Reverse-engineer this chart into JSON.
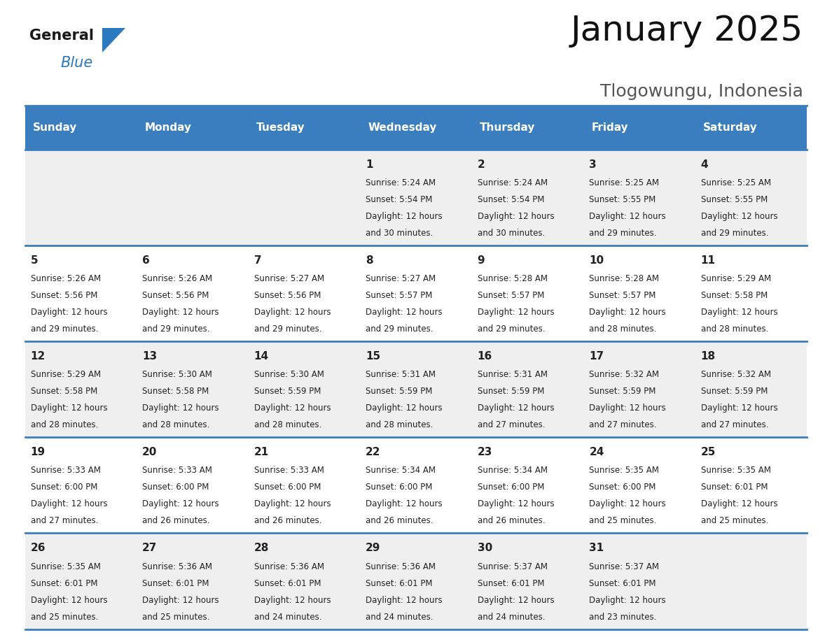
{
  "title": "January 2025",
  "subtitle": "Tlogowungu, Indonesia",
  "header_color": "#3a7ebf",
  "header_text_color": "#ffffff",
  "day_names": [
    "Sunday",
    "Monday",
    "Tuesday",
    "Wednesday",
    "Thursday",
    "Friday",
    "Saturday"
  ],
  "bg_color_odd": "#efefef",
  "bg_color_even": "#ffffff",
  "text_color": "#222222",
  "border_color": "#3a7ebf",
  "title_fontsize": 36,
  "subtitle_fontsize": 18,
  "header_fontsize": 11,
  "day_num_fontsize": 11,
  "cell_fontsize": 8.5,
  "logo_general_color": "#1a1a1a",
  "logo_blue_color": "#2b7abf",
  "logo_triangle_color": "#2b7abf",
  "days": [
    {
      "day": 1,
      "col": 3,
      "row": 0,
      "sunrise": "5:24 AM",
      "sunset": "5:54 PM",
      "daylight": "12 hours and 30 minutes."
    },
    {
      "day": 2,
      "col": 4,
      "row": 0,
      "sunrise": "5:24 AM",
      "sunset": "5:54 PM",
      "daylight": "12 hours and 30 minutes."
    },
    {
      "day": 3,
      "col": 5,
      "row": 0,
      "sunrise": "5:25 AM",
      "sunset": "5:55 PM",
      "daylight": "12 hours and 29 minutes."
    },
    {
      "day": 4,
      "col": 6,
      "row": 0,
      "sunrise": "5:25 AM",
      "sunset": "5:55 PM",
      "daylight": "12 hours and 29 minutes."
    },
    {
      "day": 5,
      "col": 0,
      "row": 1,
      "sunrise": "5:26 AM",
      "sunset": "5:56 PM",
      "daylight": "12 hours and 29 minutes."
    },
    {
      "day": 6,
      "col": 1,
      "row": 1,
      "sunrise": "5:26 AM",
      "sunset": "5:56 PM",
      "daylight": "12 hours and 29 minutes."
    },
    {
      "day": 7,
      "col": 2,
      "row": 1,
      "sunrise": "5:27 AM",
      "sunset": "5:56 PM",
      "daylight": "12 hours and 29 minutes."
    },
    {
      "day": 8,
      "col": 3,
      "row": 1,
      "sunrise": "5:27 AM",
      "sunset": "5:57 PM",
      "daylight": "12 hours and 29 minutes."
    },
    {
      "day": 9,
      "col": 4,
      "row": 1,
      "sunrise": "5:28 AM",
      "sunset": "5:57 PM",
      "daylight": "12 hours and 29 minutes."
    },
    {
      "day": 10,
      "col": 5,
      "row": 1,
      "sunrise": "5:28 AM",
      "sunset": "5:57 PM",
      "daylight": "12 hours and 28 minutes."
    },
    {
      "day": 11,
      "col": 6,
      "row": 1,
      "sunrise": "5:29 AM",
      "sunset": "5:58 PM",
      "daylight": "12 hours and 28 minutes."
    },
    {
      "day": 12,
      "col": 0,
      "row": 2,
      "sunrise": "5:29 AM",
      "sunset": "5:58 PM",
      "daylight": "12 hours and 28 minutes."
    },
    {
      "day": 13,
      "col": 1,
      "row": 2,
      "sunrise": "5:30 AM",
      "sunset": "5:58 PM",
      "daylight": "12 hours and 28 minutes."
    },
    {
      "day": 14,
      "col": 2,
      "row": 2,
      "sunrise": "5:30 AM",
      "sunset": "5:59 PM",
      "daylight": "12 hours and 28 minutes."
    },
    {
      "day": 15,
      "col": 3,
      "row": 2,
      "sunrise": "5:31 AM",
      "sunset": "5:59 PM",
      "daylight": "12 hours and 28 minutes."
    },
    {
      "day": 16,
      "col": 4,
      "row": 2,
      "sunrise": "5:31 AM",
      "sunset": "5:59 PM",
      "daylight": "12 hours and 27 minutes."
    },
    {
      "day": 17,
      "col": 5,
      "row": 2,
      "sunrise": "5:32 AM",
      "sunset": "5:59 PM",
      "daylight": "12 hours and 27 minutes."
    },
    {
      "day": 18,
      "col": 6,
      "row": 2,
      "sunrise": "5:32 AM",
      "sunset": "5:59 PM",
      "daylight": "12 hours and 27 minutes."
    },
    {
      "day": 19,
      "col": 0,
      "row": 3,
      "sunrise": "5:33 AM",
      "sunset": "6:00 PM",
      "daylight": "12 hours and 27 minutes."
    },
    {
      "day": 20,
      "col": 1,
      "row": 3,
      "sunrise": "5:33 AM",
      "sunset": "6:00 PM",
      "daylight": "12 hours and 26 minutes."
    },
    {
      "day": 21,
      "col": 2,
      "row": 3,
      "sunrise": "5:33 AM",
      "sunset": "6:00 PM",
      "daylight": "12 hours and 26 minutes."
    },
    {
      "day": 22,
      "col": 3,
      "row": 3,
      "sunrise": "5:34 AM",
      "sunset": "6:00 PM",
      "daylight": "12 hours and 26 minutes."
    },
    {
      "day": 23,
      "col": 4,
      "row": 3,
      "sunrise": "5:34 AM",
      "sunset": "6:00 PM",
      "daylight": "12 hours and 26 minutes."
    },
    {
      "day": 24,
      "col": 5,
      "row": 3,
      "sunrise": "5:35 AM",
      "sunset": "6:00 PM",
      "daylight": "12 hours and 25 minutes."
    },
    {
      "day": 25,
      "col": 6,
      "row": 3,
      "sunrise": "5:35 AM",
      "sunset": "6:01 PM",
      "daylight": "12 hours and 25 minutes."
    },
    {
      "day": 26,
      "col": 0,
      "row": 4,
      "sunrise": "5:35 AM",
      "sunset": "6:01 PM",
      "daylight": "12 hours and 25 minutes."
    },
    {
      "day": 27,
      "col": 1,
      "row": 4,
      "sunrise": "5:36 AM",
      "sunset": "6:01 PM",
      "daylight": "12 hours and 25 minutes."
    },
    {
      "day": 28,
      "col": 2,
      "row": 4,
      "sunrise": "5:36 AM",
      "sunset": "6:01 PM",
      "daylight": "12 hours and 24 minutes."
    },
    {
      "day": 29,
      "col": 3,
      "row": 4,
      "sunrise": "5:36 AM",
      "sunset": "6:01 PM",
      "daylight": "12 hours and 24 minutes."
    },
    {
      "day": 30,
      "col": 4,
      "row": 4,
      "sunrise": "5:37 AM",
      "sunset": "6:01 PM",
      "daylight": "12 hours and 24 minutes."
    },
    {
      "day": 31,
      "col": 5,
      "row": 4,
      "sunrise": "5:37 AM",
      "sunset": "6:01 PM",
      "daylight": "12 hours and 23 minutes."
    }
  ]
}
